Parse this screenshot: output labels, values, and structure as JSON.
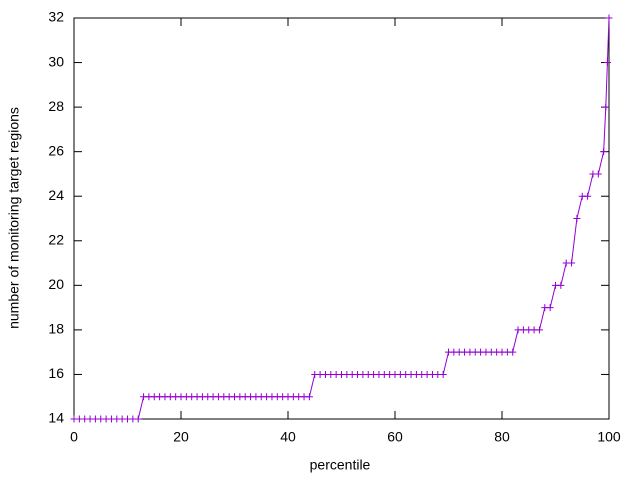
{
  "chart_data": {
    "type": "line",
    "xlabel": "percentile",
    "ylabel": "number of monitoring target regions",
    "x": [
      0,
      1,
      2,
      3,
      4,
      5,
      6,
      7,
      8,
      9,
      10,
      11,
      12,
      13,
      14,
      15,
      16,
      17,
      18,
      19,
      20,
      21,
      22,
      23,
      24,
      25,
      26,
      27,
      28,
      29,
      30,
      31,
      32,
      33,
      34,
      35,
      36,
      37,
      38,
      39,
      40,
      41,
      42,
      43,
      44,
      45,
      46,
      47,
      48,
      49,
      50,
      51,
      52,
      53,
      54,
      55,
      56,
      57,
      58,
      59,
      60,
      61,
      62,
      63,
      64,
      65,
      66,
      67,
      68,
      69,
      70,
      71,
      72,
      73,
      74,
      75,
      76,
      77,
      78,
      79,
      80,
      81,
      82,
      83,
      84,
      85,
      86,
      87,
      88,
      89,
      90,
      91,
      92,
      93,
      94,
      95,
      96,
      97,
      98,
      99,
      99.4,
      99.7,
      100
    ],
    "values": [
      14,
      14,
      14,
      14,
      14,
      14,
      14,
      14,
      14,
      14,
      14,
      14,
      14,
      15,
      15,
      15,
      15,
      15,
      15,
      15,
      15,
      15,
      15,
      15,
      15,
      15,
      15,
      15,
      15,
      15,
      15,
      15,
      15,
      15,
      15,
      15,
      15,
      15,
      15,
      15,
      15,
      15,
      15,
      15,
      15,
      16,
      16,
      16,
      16,
      16,
      16,
      16,
      16,
      16,
      16,
      16,
      16,
      16,
      16,
      16,
      16,
      16,
      16,
      16,
      16,
      16,
      16,
      16,
      16,
      16,
      17,
      17,
      17,
      17,
      17,
      17,
      17,
      17,
      17,
      17,
      17,
      17,
      17,
      18,
      18,
      18,
      18,
      18,
      19,
      19,
      20,
      20,
      21,
      21,
      23,
      24,
      24,
      25,
      25,
      26,
      28,
      30,
      32
    ],
    "color": "#9400d3",
    "xlim": [
      0,
      100
    ],
    "xticks": [
      0,
      20,
      40,
      60,
      80,
      100
    ],
    "ylim": [
      14,
      32
    ],
    "yticks": [
      14,
      16,
      18,
      20,
      22,
      24,
      26,
      28,
      30,
      32
    ]
  }
}
